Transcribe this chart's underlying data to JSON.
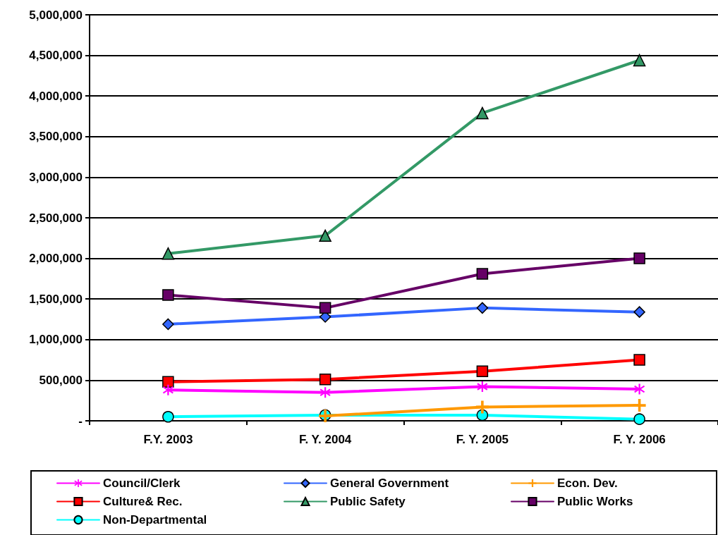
{
  "chart_data": {
    "type": "line",
    "categories": [
      "F.Y. 2003",
      "F. Y. 2004",
      "F. Y. 2005",
      "F. Y. 2006"
    ],
    "series": [
      {
        "name": "Council/Clerk",
        "color": "#ff00ff",
        "marker": "star",
        "values": [
          380000,
          350000,
          420000,
          390000
        ]
      },
      {
        "name": "General Government",
        "color": "#3366ff",
        "marker": "diamond",
        "values": [
          1190000,
          1280000,
          1390000,
          1340000
        ]
      },
      {
        "name": "Econ. Dev.",
        "color": "#ff9900",
        "marker": "cross",
        "values": [
          null,
          60000,
          170000,
          190000
        ]
      },
      {
        "name": "Culture& Rec.",
        "color": "#ff0000",
        "marker": "square",
        "values": [
          480000,
          510000,
          610000,
          750000
        ]
      },
      {
        "name": "Public Safety",
        "color": "#339966",
        "marker": "triangle",
        "values": [
          2060000,
          2280000,
          3790000,
          4440000
        ]
      },
      {
        "name": "Public Works",
        "color": "#660066",
        "marker": "square",
        "values": [
          1550000,
          1390000,
          1810000,
          2000000
        ]
      },
      {
        "name": "Non-Departmental",
        "color": "#00ffff",
        "marker": "circle",
        "values": [
          50000,
          70000,
          70000,
          20000
        ]
      }
    ],
    "ylim": [
      0,
      5000000
    ],
    "yticks": [
      {
        "value": 0,
        "label": "-"
      },
      {
        "value": 500000,
        "label": "500,000"
      },
      {
        "value": 1000000,
        "label": "1,000,000"
      },
      {
        "value": 1500000,
        "label": "1,500,000"
      },
      {
        "value": 2000000,
        "label": "2,000,000"
      },
      {
        "value": 2500000,
        "label": "2,500,000"
      },
      {
        "value": 3000000,
        "label": "3,000,000"
      },
      {
        "value": 3500000,
        "label": "3,500,000"
      },
      {
        "value": 4000000,
        "label": "4,000,000"
      },
      {
        "value": 4500000,
        "label": "4,500,000"
      },
      {
        "value": 5000000,
        "label": "5,000,000"
      }
    ],
    "grid": "y",
    "legend": "bottom",
    "line_style": "solid"
  }
}
